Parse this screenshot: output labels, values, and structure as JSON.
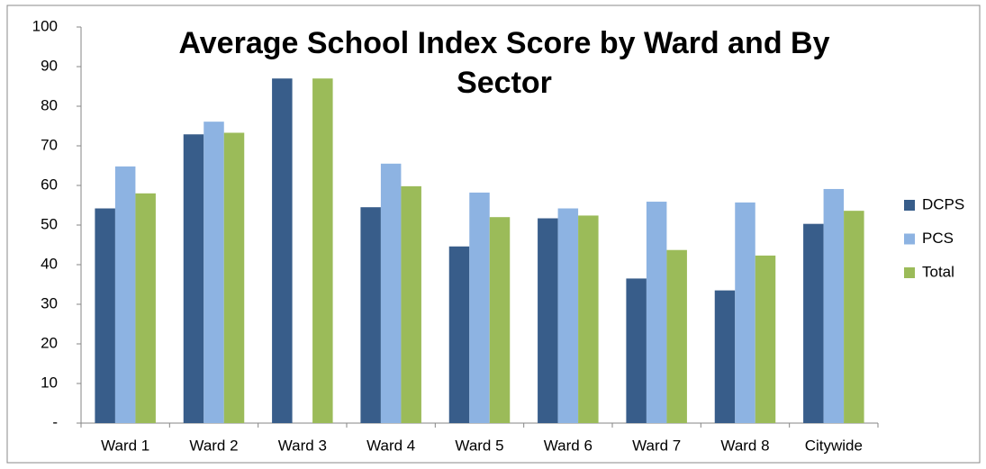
{
  "chart_data": {
    "type": "bar",
    "title": "Average School Index Score by Ward and By Sector",
    "categories": [
      "Ward 1",
      "Ward 2",
      "Ward 3",
      "Ward 4",
      "Ward 5",
      "Ward 6",
      "Ward 7",
      "Ward 8",
      "Citywide"
    ],
    "series": [
      {
        "name": "DCPS",
        "color": "#385d8a",
        "values": [
          54.2,
          72.9,
          87,
          54.5,
          44.6,
          51.7,
          36.5,
          33.5,
          50.3
        ]
      },
      {
        "name": "PCS",
        "color": "#8db3e2",
        "values": [
          64.8,
          76.1,
          null,
          65.5,
          58.2,
          54.2,
          55.9,
          55.7,
          59.1
        ]
      },
      {
        "name": "Total",
        "color": "#9bbb59",
        "values": [
          58,
          73.3,
          87,
          59.8,
          52,
          52.4,
          43.7,
          42.3,
          53.6
        ]
      }
    ],
    "ylim": [
      0,
      100
    ],
    "yticks": [
      {
        "value": 0,
        "label": "-"
      },
      10,
      20,
      30,
      40,
      50,
      60,
      70,
      80,
      90,
      100
    ],
    "grid": false,
    "legend": "right"
  }
}
